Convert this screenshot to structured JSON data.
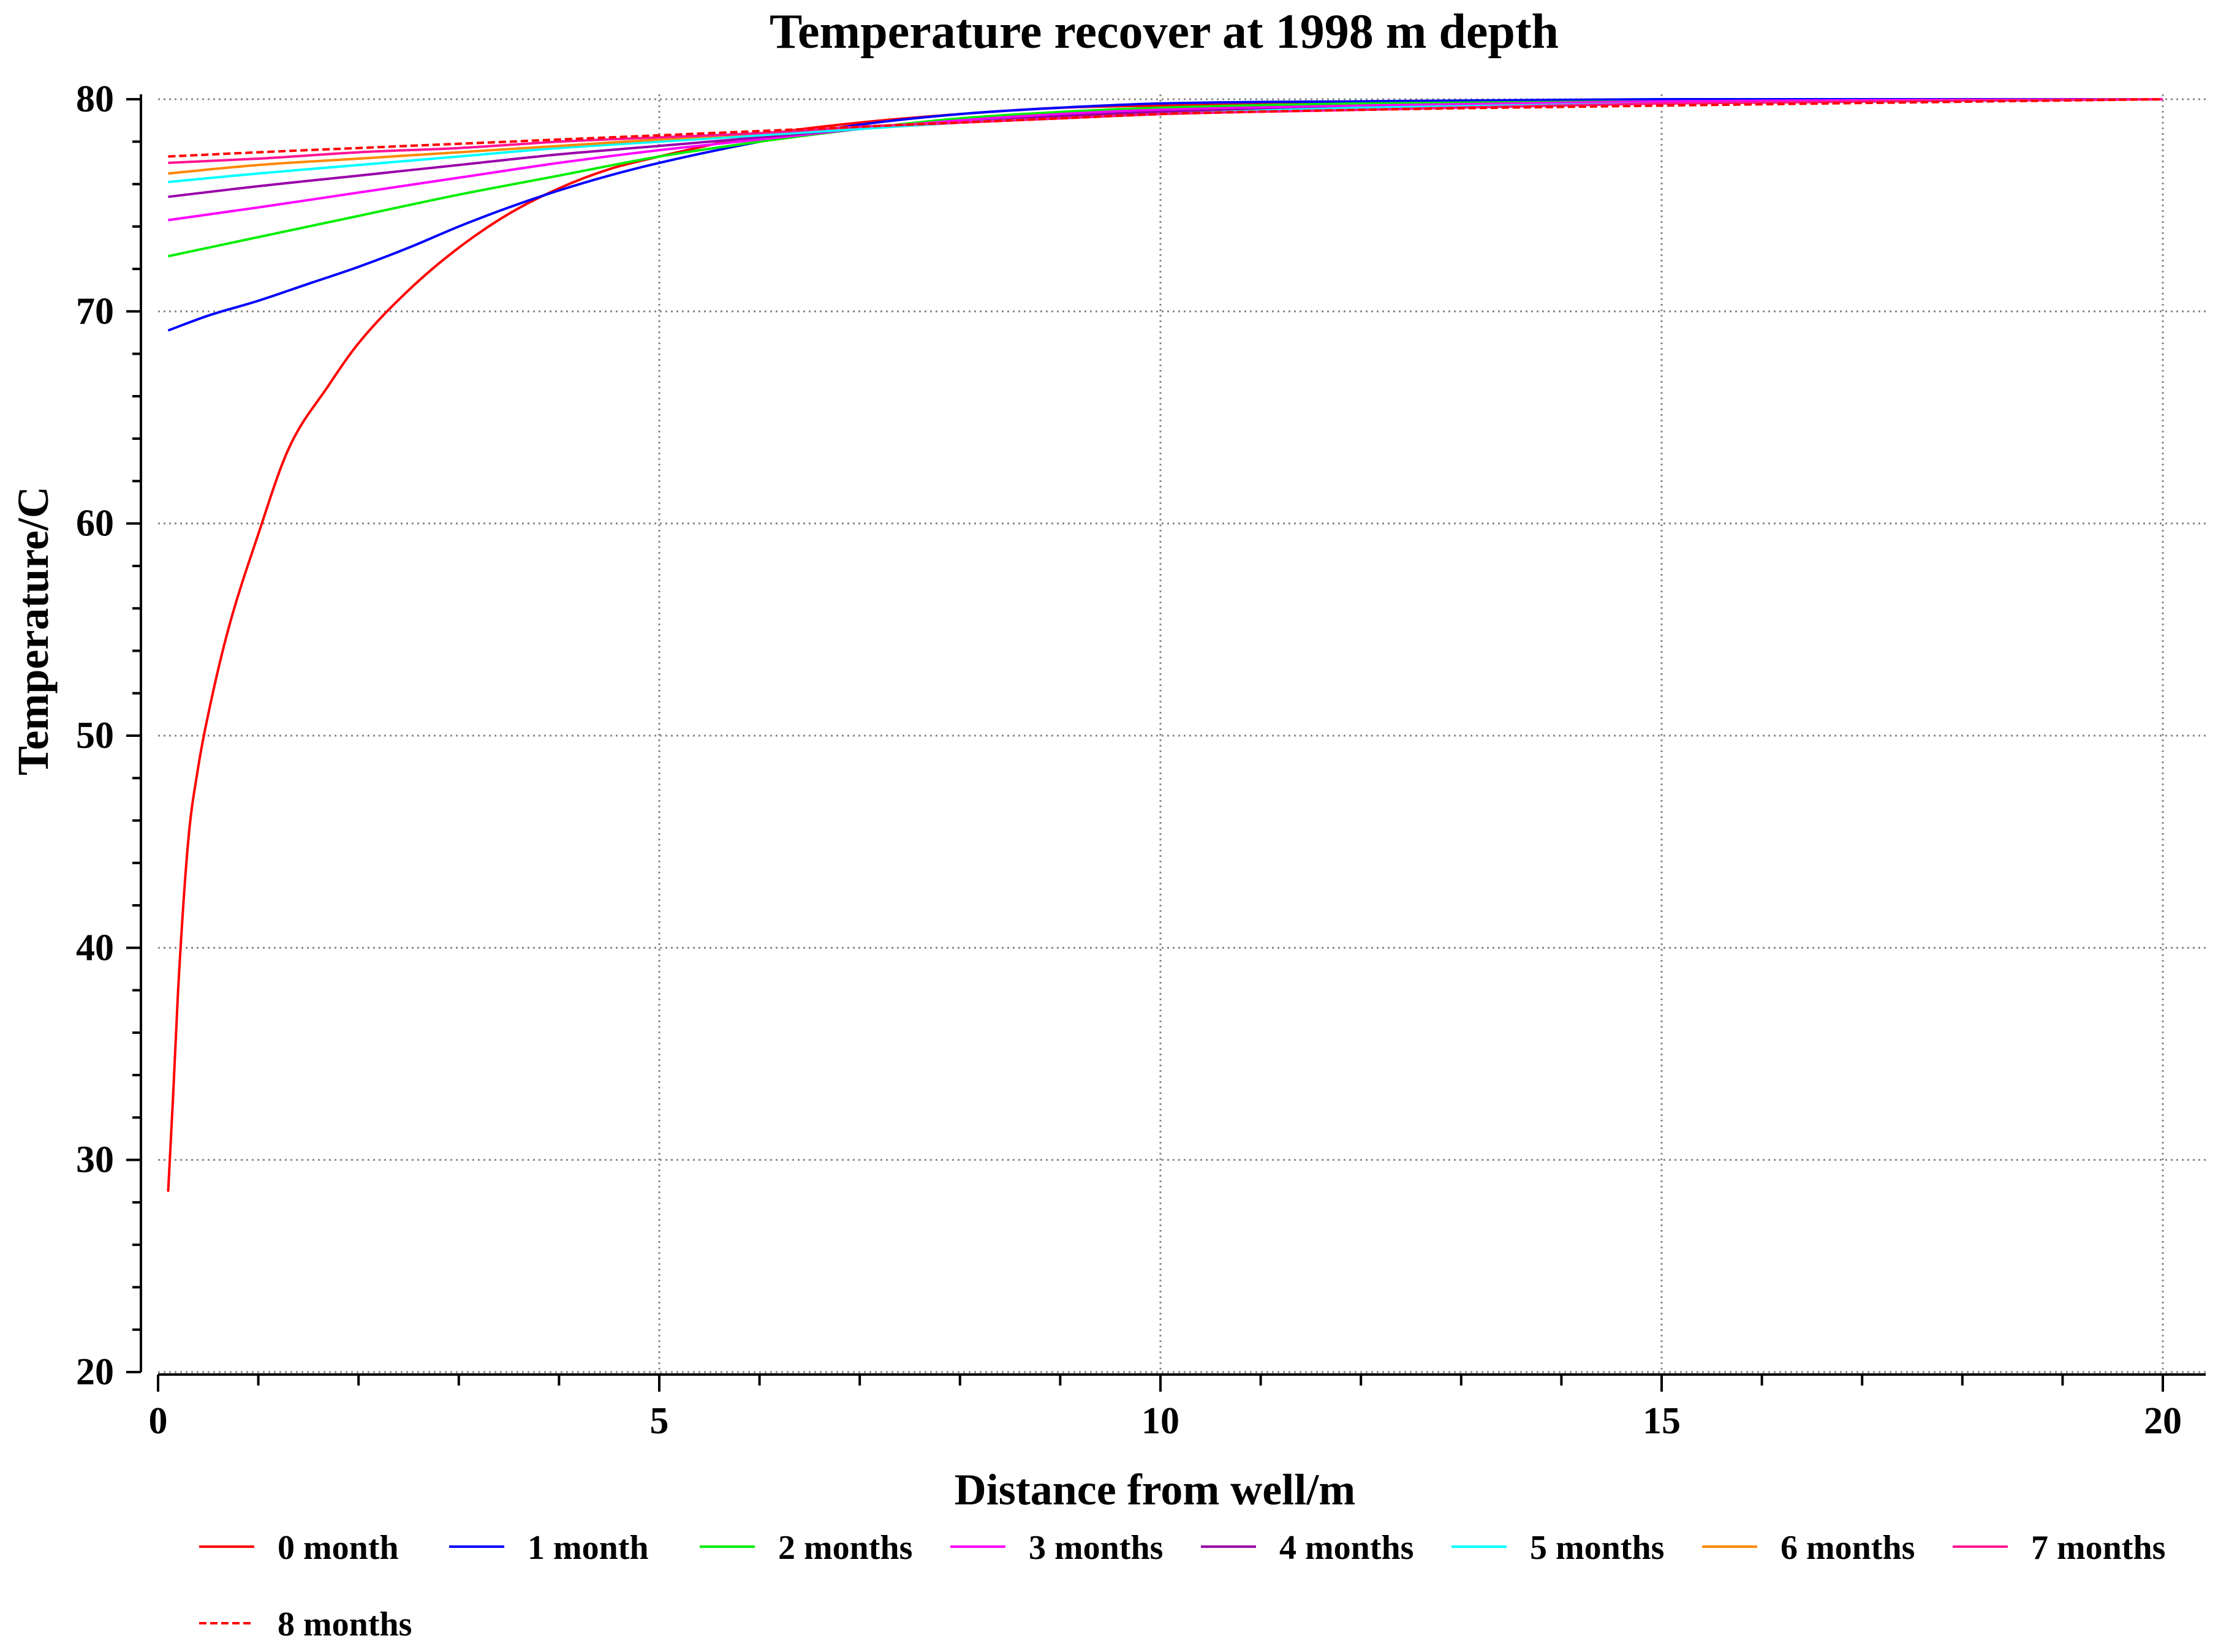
{
  "chart_data": {
    "type": "line",
    "title": "Temperature recover at 1998 m depth",
    "xlabel": "Distance from well/m",
    "ylabel": "Temperature/C",
    "xlim": [
      0,
      20
    ],
    "ylim": [
      20,
      80
    ],
    "xticks": [
      0,
      5,
      10,
      15,
      20
    ],
    "xtick_labels": [
      "0",
      "5",
      "10",
      "15",
      "20"
    ],
    "yticks": [
      20,
      30,
      40,
      50,
      60,
      70,
      80
    ],
    "ytick_labels": [
      "20",
      "30",
      "40",
      "50",
      "60",
      "70",
      "80"
    ],
    "x_minor_step": 1,
    "y_minor_step": 2,
    "grid": true,
    "legend_position": "bottom",
    "series": [
      {
        "name": "0 month",
        "color": "#ff0000",
        "dash": "solid",
        "x": [
          0.1,
          0.15,
          0.2,
          0.3,
          0.4,
          0.5,
          0.7,
          1.0,
          1.3,
          1.7,
          2.0,
          2.5,
          3.0,
          3.5,
          4.0,
          4.5,
          5.0,
          6.0,
          7.0,
          8.0,
          9.0,
          10.0,
          12.0,
          15.0,
          20.0
        ],
        "y": [
          28.5,
          33.0,
          38.0,
          45.0,
          48.5,
          51.0,
          55.0,
          59.5,
          63.5,
          66.5,
          68.5,
          71.0,
          73.0,
          74.6,
          75.8,
          76.7,
          77.3,
          78.3,
          78.9,
          79.3,
          79.6,
          79.7,
          79.8,
          79.9,
          80.0
        ]
      },
      {
        "name": "1 month",
        "color": "#0000ff",
        "dash": "solid",
        "x": [
          0.1,
          0.5,
          1.0,
          1.5,
          2.0,
          2.5,
          3.0,
          3.5,
          4.0,
          4.5,
          5.0,
          6.0,
          7.0,
          8.0,
          9.0,
          10.0,
          12.0,
          15.0,
          20.0
        ],
        "y": [
          69.1,
          69.8,
          70.5,
          71.3,
          72.1,
          73.0,
          74.0,
          74.9,
          75.7,
          76.4,
          77.0,
          78.0,
          78.8,
          79.3,
          79.6,
          79.8,
          79.9,
          80.0,
          80.0
        ]
      },
      {
        "name": "2 months",
        "color": "#00ee00",
        "dash": "solid",
        "x": [
          0.1,
          1.0,
          2.0,
          3.0,
          4.0,
          5.0,
          6.0,
          7.0,
          8.0,
          9.0,
          10.0,
          12.0,
          15.0,
          20.0
        ],
        "y": [
          72.6,
          73.5,
          74.5,
          75.5,
          76.4,
          77.3,
          78.0,
          78.6,
          79.1,
          79.4,
          79.6,
          79.8,
          79.9,
          80.0
        ]
      },
      {
        "name": "3 months",
        "color": "#ff00ff",
        "dash": "solid",
        "x": [
          0.1,
          1.0,
          2.0,
          3.0,
          4.0,
          5.0,
          6.0,
          7.0,
          8.0,
          9.0,
          10.0,
          12.0,
          15.0,
          20.0
        ],
        "y": [
          74.3,
          74.9,
          75.6,
          76.3,
          77.0,
          77.6,
          78.1,
          78.6,
          79.0,
          79.3,
          79.5,
          79.7,
          79.9,
          80.0
        ]
      },
      {
        "name": "4 months",
        "color": "#9900aa",
        "dash": "solid",
        "x": [
          0.1,
          1.0,
          2.0,
          3.0,
          4.0,
          5.0,
          6.0,
          7.0,
          8.0,
          9.0,
          10.0,
          12.0,
          15.0,
          20.0
        ],
        "y": [
          75.4,
          75.9,
          76.4,
          76.9,
          77.4,
          77.8,
          78.2,
          78.6,
          78.9,
          79.2,
          79.4,
          79.6,
          79.8,
          80.0
        ]
      },
      {
        "name": "5 months",
        "color": "#00ffff",
        "dash": "solid",
        "x": [
          0.1,
          1.0,
          2.0,
          3.0,
          4.0,
          5.0,
          6.0,
          7.0,
          8.0,
          9.0,
          10.0,
          12.0,
          15.0,
          20.0
        ],
        "y": [
          76.1,
          76.5,
          76.9,
          77.3,
          77.7,
          78.0,
          78.3,
          78.6,
          78.9,
          79.1,
          79.3,
          79.6,
          79.8,
          80.0
        ]
      },
      {
        "name": "6 months",
        "color": "#ff8800",
        "dash": "solid",
        "x": [
          0.1,
          1.0,
          2.0,
          3.0,
          4.0,
          5.0,
          6.0,
          7.0,
          8.0,
          9.0,
          10.0,
          12.0,
          15.0,
          20.0
        ],
        "y": [
          76.5,
          76.9,
          77.2,
          77.5,
          77.8,
          78.1,
          78.4,
          78.7,
          78.9,
          79.1,
          79.3,
          79.5,
          79.8,
          80.0
        ]
      },
      {
        "name": "7 months",
        "color": "#ff1493",
        "dash": "solid",
        "x": [
          0.1,
          1.0,
          2.0,
          3.0,
          4.0,
          5.0,
          6.0,
          7.0,
          8.0,
          9.0,
          10.0,
          12.0,
          15.0,
          20.0
        ],
        "y": [
          77.0,
          77.2,
          77.5,
          77.7,
          78.0,
          78.2,
          78.4,
          78.7,
          78.9,
          79.1,
          79.3,
          79.5,
          79.8,
          80.0
        ]
      },
      {
        "name": "8 months",
        "color": "#ff0000",
        "dash": "dashed",
        "x": [
          0.1,
          1.0,
          2.0,
          3.0,
          4.0,
          5.0,
          6.0,
          7.0,
          8.0,
          9.0,
          10.0,
          12.0,
          15.0,
          20.0
        ],
        "y": [
          77.3,
          77.5,
          77.7,
          77.9,
          78.1,
          78.3,
          78.5,
          78.7,
          78.9,
          79.1,
          79.3,
          79.5,
          79.7,
          80.0
        ]
      }
    ]
  }
}
